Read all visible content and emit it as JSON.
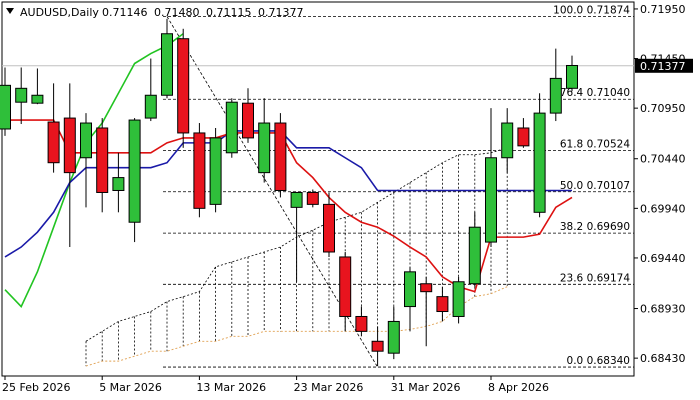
{
  "header": {
    "symbol_label": "AUDUSD,Daily",
    "open": "0.71146",
    "high": "0.71480",
    "low": "0.71115",
    "close": "0.71377"
  },
  "chart_data": {
    "type": "candlestick",
    "title": "AUDUSD,Daily",
    "ylim": [
      0.6825,
      0.7202
    ],
    "y_ticks": [
      {
        "value": 0.7195,
        "label": "0.71950"
      },
      {
        "value": 0.7145,
        "label": "0.71450"
      },
      {
        "value": 0.7095,
        "label": "0.70950"
      },
      {
        "value": 0.7044,
        "label": "0.70440"
      },
      {
        "value": 0.6994,
        "label": "0.69940"
      },
      {
        "value": 0.6944,
        "label": "0.69440"
      },
      {
        "value": 0.6893,
        "label": "0.68930"
      },
      {
        "value": 0.6843,
        "label": "0.68430"
      }
    ],
    "x_labels": [
      {
        "index": 0,
        "label": "25 Feb 2026"
      },
      {
        "index": 6,
        "label": "5 Mar 2026"
      },
      {
        "index": 12,
        "label": "13 Mar 2026"
      },
      {
        "index": 18,
        "label": "23 Mar 2026"
      },
      {
        "index": 24,
        "label": "31 Mar 2026"
      },
      {
        "index": 30,
        "label": "8 Apr 2026"
      }
    ],
    "current_price": {
      "value": 0.71377,
      "label": "0.71377"
    },
    "bull_color": "#2fbf3a",
    "bear_color": "#e8141e",
    "candles": [
      {
        "o": 0.7074,
        "h": 0.7136,
        "l": 0.7067,
        "c": 0.7118
      },
      {
        "o": 0.7101,
        "h": 0.7136,
        "l": 0.7079,
        "c": 0.7115
      },
      {
        "o": 0.71,
        "h": 0.7135,
        "l": 0.7099,
        "c": 0.7108
      },
      {
        "o": 0.7081,
        "h": 0.712,
        "l": 0.703,
        "c": 0.704
      },
      {
        "o": 0.7085,
        "h": 0.712,
        "l": 0.6955,
        "c": 0.703
      },
      {
        "o": 0.7045,
        "h": 0.709,
        "l": 0.6995,
        "c": 0.708
      },
      {
        "o": 0.7075,
        "h": 0.7085,
        "l": 0.699,
        "c": 0.701
      },
      {
        "o": 0.7012,
        "h": 0.705,
        "l": 0.699,
        "c": 0.7025
      },
      {
        "o": 0.698,
        "h": 0.7085,
        "l": 0.696,
        "c": 0.7083
      },
      {
        "o": 0.7085,
        "h": 0.7145,
        "l": 0.7082,
        "c": 0.7108
      },
      {
        "o": 0.7108,
        "h": 0.7185,
        "l": 0.7105,
        "c": 0.717
      },
      {
        "o": 0.7165,
        "h": 0.7175,
        "l": 0.7055,
        "c": 0.707
      },
      {
        "o": 0.707,
        "h": 0.708,
        "l": 0.6985,
        "c": 0.6994
      },
      {
        "o": 0.6998,
        "h": 0.7075,
        "l": 0.699,
        "c": 0.7065
      },
      {
        "o": 0.705,
        "h": 0.7105,
        "l": 0.7045,
        "c": 0.7101
      },
      {
        "o": 0.71,
        "h": 0.7115,
        "l": 0.706,
        "c": 0.7065
      },
      {
        "o": 0.703,
        "h": 0.7105,
        "l": 0.702,
        "c": 0.708
      },
      {
        "o": 0.708,
        "h": 0.709,
        "l": 0.7005,
        "c": 0.7012
      },
      {
        "o": 0.6995,
        "h": 0.701,
        "l": 0.692,
        "c": 0.701
      },
      {
        "o": 0.701,
        "h": 0.7013,
        "l": 0.6995,
        "c": 0.6998
      },
      {
        "o": 0.6998,
        "h": 0.701,
        "l": 0.6945,
        "c": 0.695
      },
      {
        "o": 0.6945,
        "h": 0.695,
        "l": 0.687,
        "c": 0.6885
      },
      {
        "o": 0.6885,
        "h": 0.6895,
        "l": 0.6865,
        "c": 0.687
      },
      {
        "o": 0.686,
        "h": 0.6875,
        "l": 0.6835,
        "c": 0.685
      },
      {
        "o": 0.6848,
        "h": 0.6895,
        "l": 0.6842,
        "c": 0.688
      },
      {
        "o": 0.6895,
        "h": 0.6935,
        "l": 0.687,
        "c": 0.693
      },
      {
        "o": 0.6918,
        "h": 0.6925,
        "l": 0.6855,
        "c": 0.691
      },
      {
        "o": 0.6905,
        "h": 0.6915,
        "l": 0.688,
        "c": 0.689
      },
      {
        "o": 0.6885,
        "h": 0.6925,
        "l": 0.6878,
        "c": 0.692
      },
      {
        "o": 0.6918,
        "h": 0.699,
        "l": 0.6915,
        "c": 0.6975
      },
      {
        "o": 0.696,
        "h": 0.7095,
        "l": 0.6955,
        "c": 0.7045
      },
      {
        "o": 0.7045,
        "h": 0.7095,
        "l": 0.703,
        "c": 0.708
      },
      {
        "o": 0.7075,
        "h": 0.7085,
        "l": 0.7055,
        "c": 0.7057
      },
      {
        "o": 0.699,
        "h": 0.711,
        "l": 0.6985,
        "c": 0.709
      },
      {
        "o": 0.709,
        "h": 0.7155,
        "l": 0.7082,
        "c": 0.7125
      },
      {
        "o": 0.7115,
        "h": 0.7148,
        "l": 0.7112,
        "c": 0.7138
      }
    ],
    "red_line": [
      0.7083,
      0.7083,
      0.7083,
      0.7083,
      0.705,
      0.705,
      0.705,
      0.705,
      0.705,
      0.705,
      0.706,
      0.7065,
      0.7065,
      0.7065,
      0.707,
      0.707,
      0.707,
      0.707,
      0.704,
      0.7025,
      0.7005,
      0.699,
      0.698,
      0.6975,
      0.6966,
      0.6955,
      0.6945,
      0.6925,
      0.6915,
      0.691,
      0.6965,
      0.6965,
      0.6965,
      0.6968,
      0.6995,
      0.7005
    ],
    "blue_line": [
      0.6945,
      0.6955,
      0.697,
      0.699,
      0.702,
      0.7035,
      0.7035,
      0.7035,
      0.7035,
      0.7035,
      0.704,
      0.706,
      0.706,
      0.706,
      0.7072,
      0.7072,
      0.7072,
      0.7072,
      0.7055,
      0.7055,
      0.7055,
      0.7045,
      0.7035,
      0.7012,
      0.7012,
      0.7012,
      0.7012,
      0.7012,
      0.7012,
      0.7012,
      0.7012,
      0.7012,
      0.7012,
      0.7012,
      0.7012,
      0.7012
    ],
    "green_line": [
      0.6912,
      0.6895,
      0.693,
      0.6975,
      0.702,
      0.706,
      0.708,
      0.711,
      0.714,
      0.715,
      0.7158,
      0.717
    ],
    "cloud_upper": [
      0.686,
      0.687,
      0.688,
      0.6885,
      0.689,
      0.69,
      0.6905,
      0.691,
      0.6935,
      0.694,
      0.6945,
      0.695,
      0.6955,
      0.6965,
      0.6972,
      0.698,
      0.6985,
      0.699,
      0.7,
      0.701,
      0.702,
      0.703,
      0.704,
      0.7048,
      0.7048,
      0.705,
      0.7055
    ],
    "cloud_lower": [
      0.6835,
      0.684,
      0.684,
      0.6845,
      0.685,
      0.685,
      0.6855,
      0.686,
      0.686,
      0.6865,
      0.6865,
      0.687,
      0.687,
      0.687,
      0.687,
      0.687,
      0.687,
      0.687,
      0.687,
      0.687,
      0.6872,
      0.6875,
      0.688,
      0.6895,
      0.6905,
      0.6908,
      0.6915
    ],
    "cloud_start_index": 0,
    "fib_levels": [
      {
        "ratio": "100.0",
        "value": 0.71874
      },
      {
        "ratio": "76.4",
        "value": 0.7104
      },
      {
        "ratio": "61.8",
        "value": 0.70524
      },
      {
        "ratio": "50.0",
        "value": 0.70107
      },
      {
        "ratio": "38.2",
        "value": 0.6969
      },
      {
        "ratio": "23.6",
        "value": 0.69174
      },
      {
        "ratio": "0.0",
        "value": 0.6834
      }
    ]
  }
}
